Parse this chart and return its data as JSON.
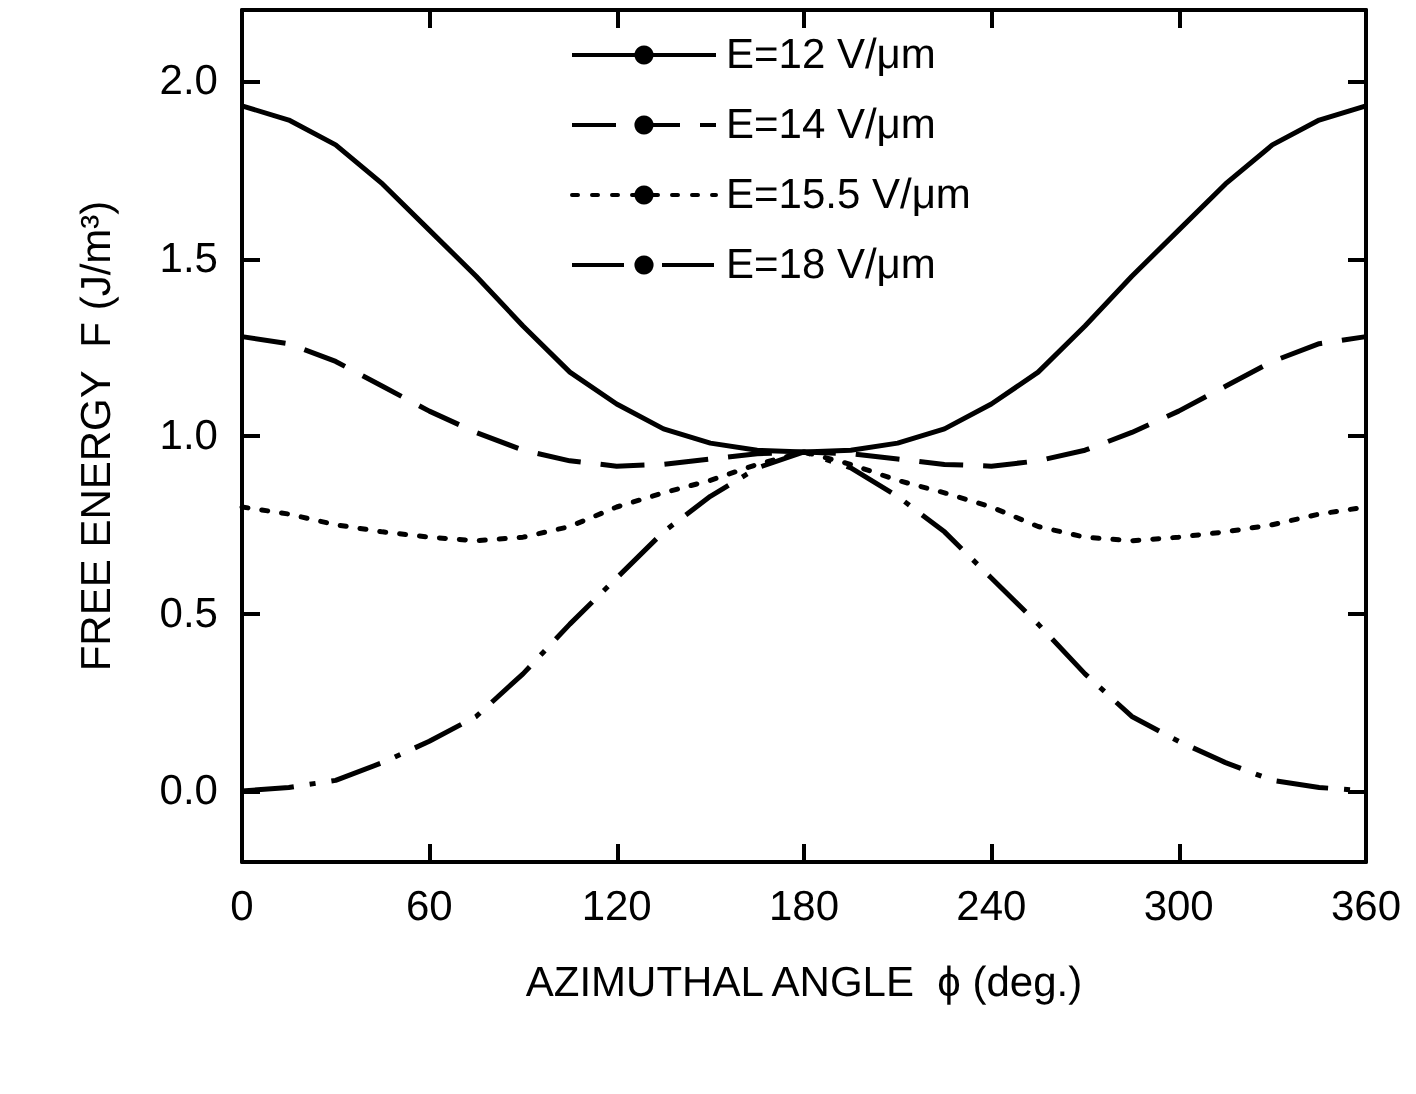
{
  "chart_data": {
    "type": "line",
    "xlabel": "AZIMUTHAL ANGLE  ϕ (deg.)",
    "ylabel": "FREE ENERGY  F (J/m³)",
    "x": [
      0,
      15,
      30,
      45,
      60,
      75,
      90,
      105,
      120,
      135,
      150,
      165,
      180,
      195,
      210,
      225,
      240,
      255,
      270,
      285,
      300,
      315,
      330,
      345,
      360
    ],
    "series": [
      {
        "name": "E=12 V/μm",
        "color": "#000000",
        "line_style": "solid",
        "values": [
          1.93,
          1.89,
          1.82,
          1.71,
          1.58,
          1.45,
          1.31,
          1.18,
          1.09,
          1.02,
          0.98,
          0.96,
          0.955,
          0.96,
          0.98,
          1.02,
          1.09,
          1.18,
          1.31,
          1.45,
          1.58,
          1.71,
          1.82,
          1.89,
          1.93
        ]
      },
      {
        "name": "E=14 V/μm",
        "color": "#000000",
        "line_style": "dashed",
        "values": [
          1.28,
          1.26,
          1.21,
          1.14,
          1.07,
          1.01,
          0.96,
          0.93,
          0.915,
          0.92,
          0.935,
          0.95,
          0.955,
          0.95,
          0.935,
          0.92,
          0.915,
          0.93,
          0.96,
          1.01,
          1.07,
          1.14,
          1.21,
          1.26,
          1.28
        ]
      },
      {
        "name": "E=15.5 V/μm",
        "color": "#000000",
        "line_style": "dotted",
        "values": [
          0.8,
          0.78,
          0.75,
          0.73,
          0.715,
          0.705,
          0.715,
          0.745,
          0.8,
          0.84,
          0.875,
          0.92,
          0.955,
          0.92,
          0.875,
          0.84,
          0.8,
          0.745,
          0.715,
          0.705,
          0.715,
          0.73,
          0.75,
          0.78,
          0.8
        ]
      },
      {
        "name": "E=18 V/μm",
        "color": "#000000",
        "line_style": "dashdot",
        "values": [
          0.0,
          0.01,
          0.03,
          0.08,
          0.14,
          0.21,
          0.33,
          0.47,
          0.6,
          0.73,
          0.83,
          0.91,
          0.955,
          0.91,
          0.83,
          0.73,
          0.6,
          0.47,
          0.33,
          0.21,
          0.14,
          0.08,
          0.03,
          0.01,
          0.0
        ]
      }
    ],
    "xlim": [
      0,
      360
    ],
    "xticks": [
      0,
      60,
      120,
      180,
      240,
      300,
      360
    ],
    "ylim": [
      -0.2,
      2.2
    ],
    "yticks": [
      {
        "value": 0,
        "label": "0.0"
      },
      {
        "value": 0.5,
        "label": "0.5"
      },
      {
        "value": 1,
        "label": "1.0"
      },
      {
        "value": 1.5,
        "label": "1.5"
      },
      {
        "value": 2,
        "label": "2.0"
      }
    ],
    "legend": "top",
    "grid": false,
    "marker": "none"
  }
}
